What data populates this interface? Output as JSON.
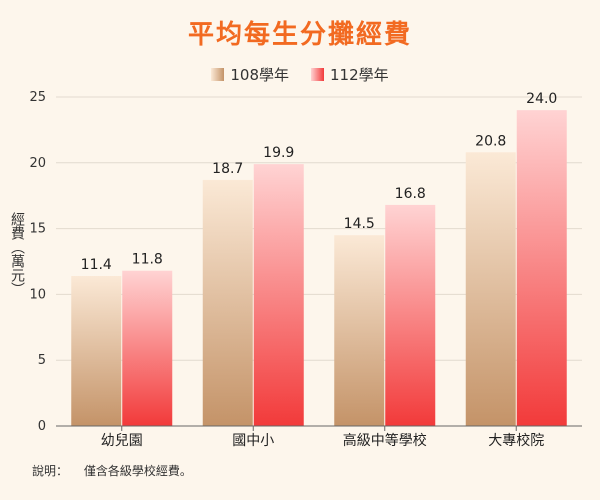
{
  "chart_data": {
    "type": "bar",
    "title": "平均每生分攤經費",
    "ylabel": "經費（萬元）",
    "xlabel": "",
    "categories": [
      "幼兒園",
      "國中小",
      "高級中等學校",
      "大專校院"
    ],
    "series": [
      {
        "name": "108學年",
        "values": [
          11.4,
          18.7,
          14.5,
          20.8
        ],
        "color_light": "#fbe9d6",
        "color_dark": "#c49368"
      },
      {
        "name": "112學年",
        "values": [
          11.8,
          19.9,
          16.8,
          24.0
        ],
        "color_light": "#ffd3d3",
        "color_dark": "#f23a3a"
      }
    ],
    "ylim": [
      0,
      25
    ],
    "yticks": [
      0,
      5,
      10,
      15,
      20,
      25
    ],
    "grid": true,
    "legend_position": "top-center",
    "data_labels": true
  },
  "note": {
    "label": "說明：",
    "text": "僅含各級學校經費。"
  }
}
